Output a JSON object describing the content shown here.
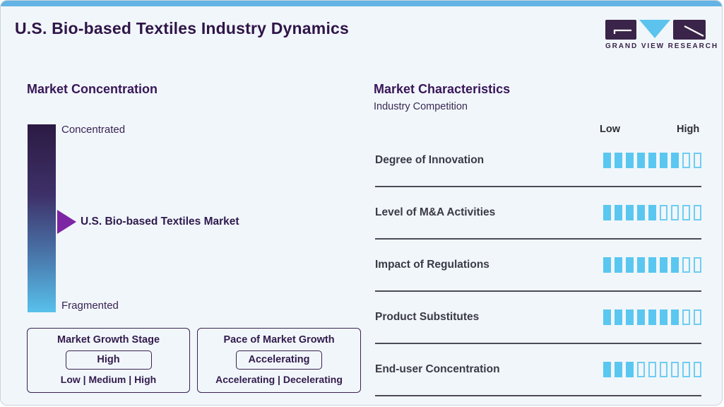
{
  "page": {
    "title": "U.S. Bio-based Textiles Industry Dynamics",
    "brand": "GRAND VIEW RESEARCH"
  },
  "market_concentration": {
    "heading": "Market Concentration",
    "scale_top_label": "Concentrated",
    "scale_bottom_label": "Fragmented",
    "marker_label": "U.S. Bio-based Textiles Market",
    "marker_position_pct": 52,
    "growth_stage_box": {
      "title": "Market Growth Stage",
      "value": "High",
      "options": "Low | Medium | High"
    },
    "growth_pace_box": {
      "title": "Pace of Market Growth",
      "value": "Accelerating",
      "options": "Accelerating | Decelerating"
    }
  },
  "market_characteristics": {
    "heading": "Market Characteristics",
    "subheading": "Industry Competition",
    "scale_low_label": "Low",
    "scale_high_label": "High",
    "rows": [
      {
        "label": "Degree of Innovation",
        "filled": 7,
        "total": 9
      },
      {
        "label": "Level of M&A Activities",
        "filled": 5,
        "total": 9
      },
      {
        "label": "Impact of Regulations",
        "filled": 7,
        "total": 9
      },
      {
        "label": "Product Substitutes",
        "filled": 7,
        "total": 9
      },
      {
        "label": "End-user Concentration",
        "filled": 3,
        "total": 9
      }
    ]
  },
  "chart_data": {
    "type": "bar",
    "title": "Market Characteristics — Industry Competition",
    "categories": [
      "Degree of Innovation",
      "Level of M&A Activities",
      "Impact of Regulations",
      "Product Substitutes",
      "End-user Concentration"
    ],
    "values": [
      7,
      5,
      7,
      7,
      3
    ],
    "value_max": 9,
    "scale_labels": [
      "Low",
      "High"
    ],
    "legend_position": "none",
    "note": "Each value is the number of filled segments out of 9 on a Low-to-High scale"
  },
  "colors": {
    "accent_blue": "#5ac7f0",
    "top_bar_blue": "#63b3e4",
    "dark_purple": "#321b4d",
    "arrow_purple": "#7d26a3",
    "gradient_top": "#2b1a43",
    "gradient_bottom": "#58c1eb",
    "background": "#f1f6fa"
  }
}
